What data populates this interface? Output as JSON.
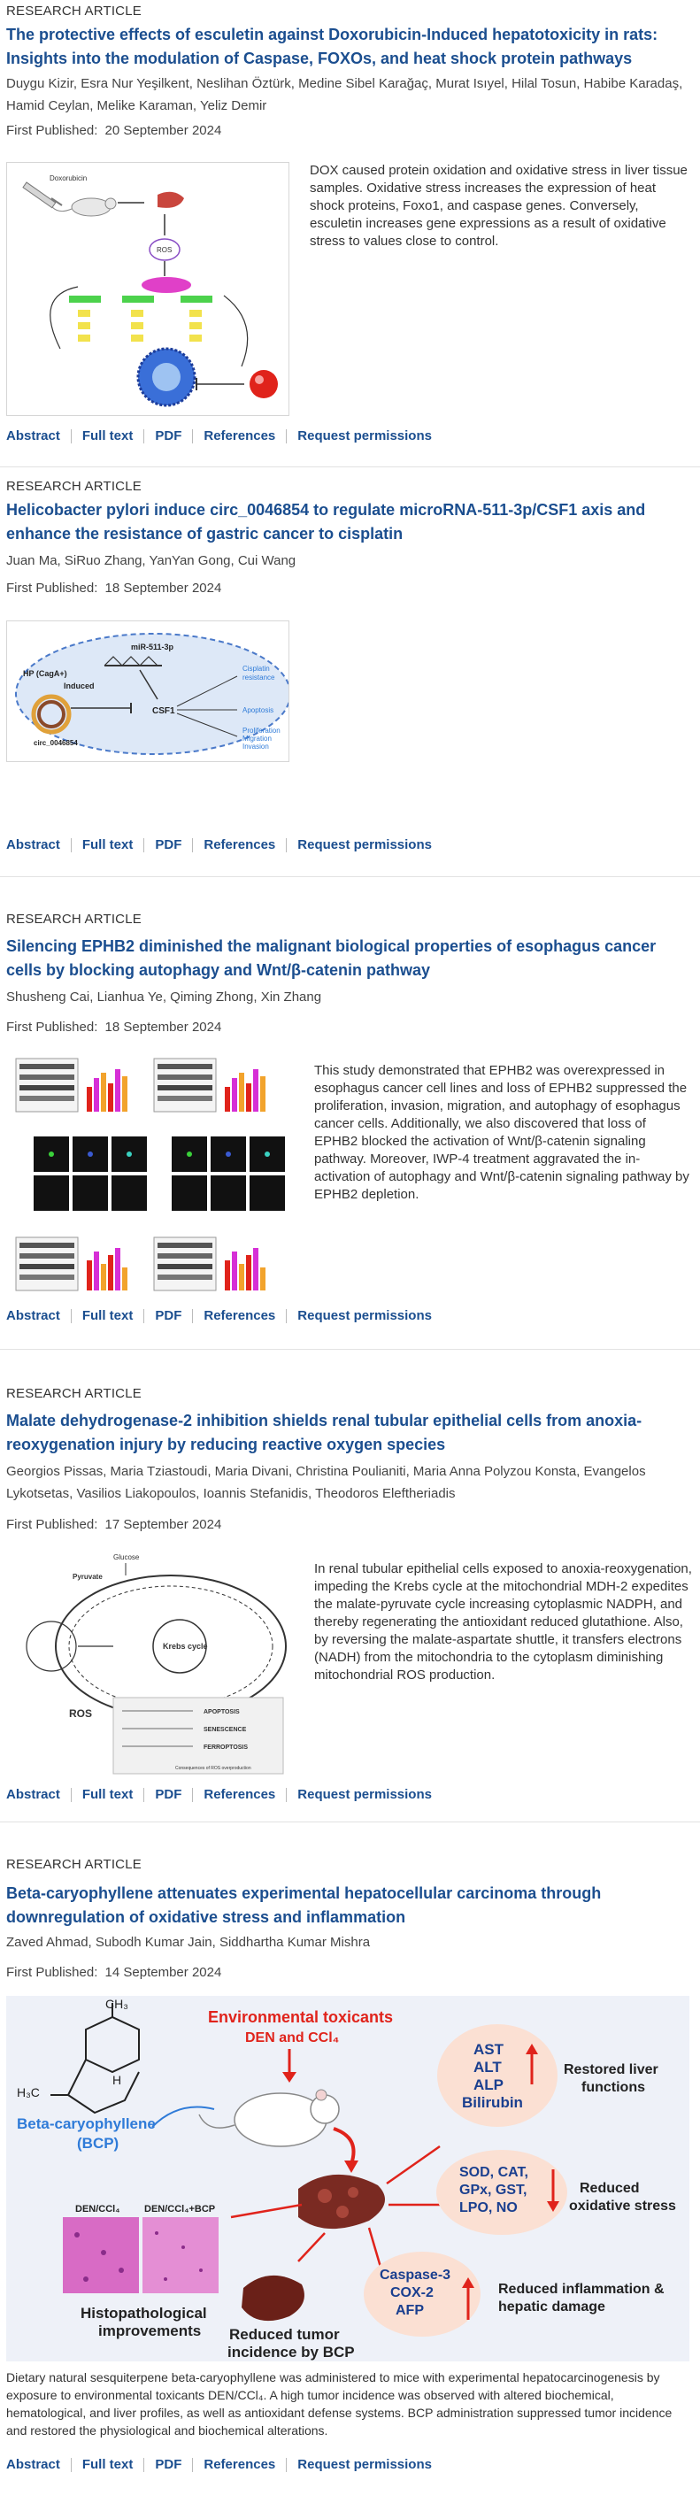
{
  "articles": [
    {
      "type": "RESEARCH ARTICLE",
      "title": "The protective effects of esculetin against Doxorubicin-Induced hepatotoxicity in rats: Insights into the modulation of Caspase, FOXOs, and heat shock protein pathways",
      "authors": "Duygu Kizir, Esra Nur Yeşilkent, Neslihan Öztürk, Medine Sibel Karağaç, Murat Isıyel, Hilal Tosun, Habibe Karadaş, Hamid Ceylan, Melike Karaman, Yeliz Demir",
      "date_label": "First Published:",
      "date": "20 September 2024",
      "abstract": "DOX caused protein oxidation and oxidative stress in liver tissue samples. Oxidative stress increases the expression of heat shock proteins, Foxo1, and caspase genes. Conversely, esculetin increases gene expressions as a result of oxidative stress to values close to control.",
      "figure_labels": {
        "top": "Doxorubicin",
        "ros": "ROS"
      }
    },
    {
      "type": "RESEARCH ARTICLE",
      "title": "Helicobacter pylori induce circ_0046854 to regulate microRNA-511-3p/CSF1 axis and enhance the resistance of gastric cancer to cisplatin",
      "authors": "Juan Ma, SiRuo Zhang, YanYan Gong, Cui Wang",
      "date_label": "First Published:",
      "date": "18 September 2024",
      "abstract": "",
      "figure_labels": {
        "hp": "HP (CagA+)",
        "induced": "Induced",
        "mirna": "miR-511-3p",
        "csf1": "CSF1",
        "circ": "circ_0046854",
        "r1": "Cisplatin",
        "r1b": "resistance",
        "r2": "Apoptosis",
        "r3": "Proliferation",
        "r3b": "Migration",
        "r3c": "Invasion"
      }
    },
    {
      "type": "RESEARCH ARTICLE",
      "title": "Silencing EPHB2 diminished the malignant biological properties of esophagus cancer cells by blocking autophagy and Wnt/β-catenin pathway",
      "authors": "Shusheng Cai, Lianhua Ye, Qiming Zhong, Xin Zhang",
      "date_label": "First Published:",
      "date": "18 September 2024",
      "abstract": "This study demonstrated that EPHB2 was overexpressed in esophagus cancer cell lines and loss of EPHB2 suppressed the proliferation, invasion, migration, and autophagy of esophagus cancer cells. Additionally, we also discovered that loss of EPHB2 blocked the activation of Wnt/β-catenin signaling pathway. Moreover, IWP-4 treatment aggravated the in-activation of autophagy and Wnt/β-catenin signaling pathway by EPHB2 depletion."
    },
    {
      "type": "RESEARCH ARTICLE",
      "title": "Malate dehydrogenase-2 inhibition shields renal tubular epithelial cells from anoxia-reoxygenation injury by reducing reactive oxygen species",
      "authors": "Georgios Pissas, Maria Tziastoudi, Maria Divani, Christina Poulianiti, Maria Anna Polyzou Konsta, Evangelos Lykotsetas, Vasilios Liakopoulos, Ioannis Stefanidis, Theodoros Eleftheriadis",
      "date_label": "First Published:",
      "date": "17 September 2024",
      "abstract": "In renal tubular epithelial cells exposed to anoxia-reoxygenation, impeding the Krebs cycle at the mitochondrial MDH-2 expedites the malate-pyruvate cycle increasing cytoplasmic NADPH, and thereby regenerating the antioxidant reduced glutathione. Also, by reversing the malate-aspartate shuttle, it transfers electrons (NADH) from the mitochondria to the cytoplasm diminishing mitochondrial ROS production.",
      "figure_labels": {
        "glucose": "Glucose",
        "pyruvate": "Pyruvate",
        "krebs": "Krebs cycle",
        "ros": "ROS",
        "apoptosis": "APOPTOSIS",
        "senescence": "SENESCENCE",
        "ferroptosis": "FERROPTOSIS",
        "consequences": "Consequences of ROS overproduction"
      }
    },
    {
      "type": "RESEARCH ARTICLE",
      "title": "Beta-caryophyllene attenuates experimental hepatocellular carcinoma through downregulation of oxidative stress and inflammation",
      "authors": "Zaved Ahmad, Subodh Kumar Jain, Siddhartha Kumar Mishra",
      "date_label": "First Published:",
      "date": "14 September 2024",
      "abstract": "Dietary natural sesquiterpene beta-caryophyllene was administered to mice with experimental hepatocarcinogenesis by exposure to environmental toxicants DEN/CCl₄. A high tumor incidence was observed with altered biochemical, hematological, and liver profiles, as well as antioxidant defense systems. BCP administration suppressed tumor incidence and restored the physiological and biochemical alterations.",
      "figure_labels": {
        "env1": "Environmental toxicants",
        "env2": "DEN and CCl₄",
        "bcp1": "Beta-caryophyllene",
        "bcp2": "(BCP)",
        "ch3": "CH₃",
        "h3c": "H₃C",
        "h": "H",
        "histo1": "Histopathological",
        "histo2": "improvements",
        "tumor1": "Reduced tumor",
        "tumor2": "incidence by BCP",
        "panel1": "DEN/CCl₄",
        "panel2": "DEN/CCl₄+BCP",
        "o1": "AST",
        "o2": "ALT",
        "o3": "ALP",
        "o4": "Bilirubin",
        "o1r": "Restored liver",
        "o1r2": "functions",
        "o2a": "SOD, CAT,",
        "o2b": "GPx, GST,",
        "o2c": "LPO, NO",
        "o2r": "Reduced",
        "o2r2": "oxidative stress",
        "o3a": "Caspase-3",
        "o3b": "COX-2",
        "o3c": "AFP",
        "o3r": "Reduced inflammation &",
        "o3r2": "hepatic damage"
      }
    }
  ],
  "link_labels": {
    "abstract": "Abstract",
    "fulltext": "Full text",
    "pdf": "PDF",
    "references": "References",
    "permissions": "Request permissions"
  },
  "colors": {
    "link": "#1b4e8f",
    "title": "#1b4e8f",
    "figure_border": "#d6d6d6",
    "red": "#e0231b",
    "blue_label": "#2f7bd8",
    "peach": "#fbe0d3"
  }
}
